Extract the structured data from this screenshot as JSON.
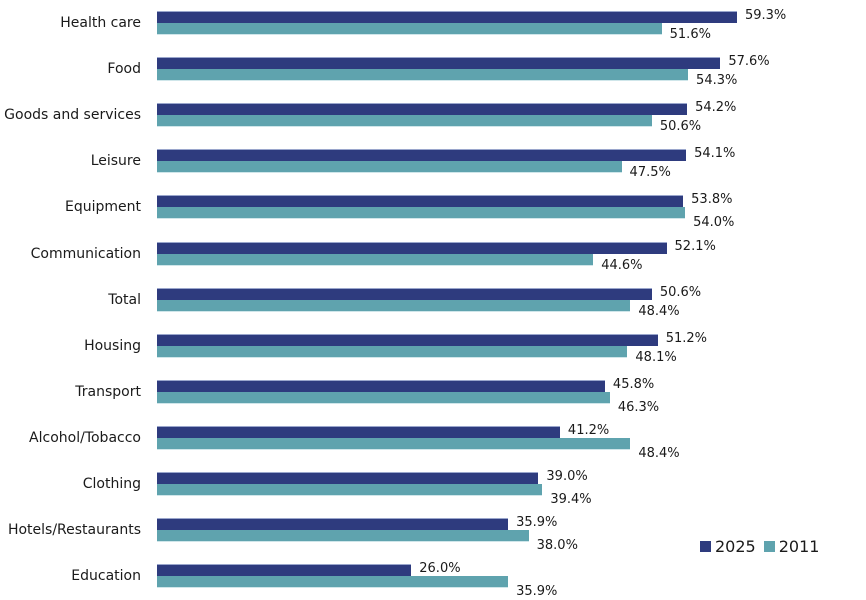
{
  "chart_data": {
    "type": "bar",
    "orientation": "horizontal",
    "title": "",
    "xlabel": "",
    "ylabel": "",
    "categories": [
      "Health care",
      "Food",
      "Goods and services",
      "Leisure",
      "Equipment",
      "Communication",
      "Total",
      "Housing",
      "Transport",
      "Alcohol/Tobacco",
      "Clothing",
      "Hotels/Restaurants",
      "Education"
    ],
    "series": [
      {
        "name": "2025",
        "color": "#2e3b7e",
        "values": [
          59.3,
          57.6,
          54.2,
          54.1,
          53.8,
          52.1,
          50.6,
          51.2,
          45.8,
          41.2,
          39.0,
          35.9,
          26.0
        ],
        "labels": [
          "59.3%",
          "57.6%",
          "54.2%",
          "54.1%",
          "53.8%",
          "52.1%",
          "50.6%",
          "51.2%",
          "45.8%",
          "41.2%",
          "39.0%",
          "35.9%",
          "26.0%"
        ]
      },
      {
        "name": "2011",
        "color": "#5fa3ae",
        "values": [
          51.6,
          54.3,
          50.6,
          47.5,
          54.0,
          44.6,
          48.4,
          48.1,
          46.3,
          48.4,
          39.4,
          38.0,
          35.9
        ],
        "labels": [
          "51.6%",
          "54.3%",
          "50.6%",
          "47.5%",
          "54.0%",
          "44.6%",
          "48.4%",
          "48.1%",
          "46.3%",
          "48.4%",
          "39.4%",
          "38.0%",
          "35.9%"
        ]
      }
    ],
    "value_format": "percent, 1 decimal",
    "grid": false,
    "axis_visible": false,
    "legend_position": "bottom-right"
  },
  "legend": {
    "items": [
      {
        "label": "2025",
        "color": "#2e3b7e"
      },
      {
        "label": "2011",
        "color": "#5fa3ae"
      }
    ]
  }
}
